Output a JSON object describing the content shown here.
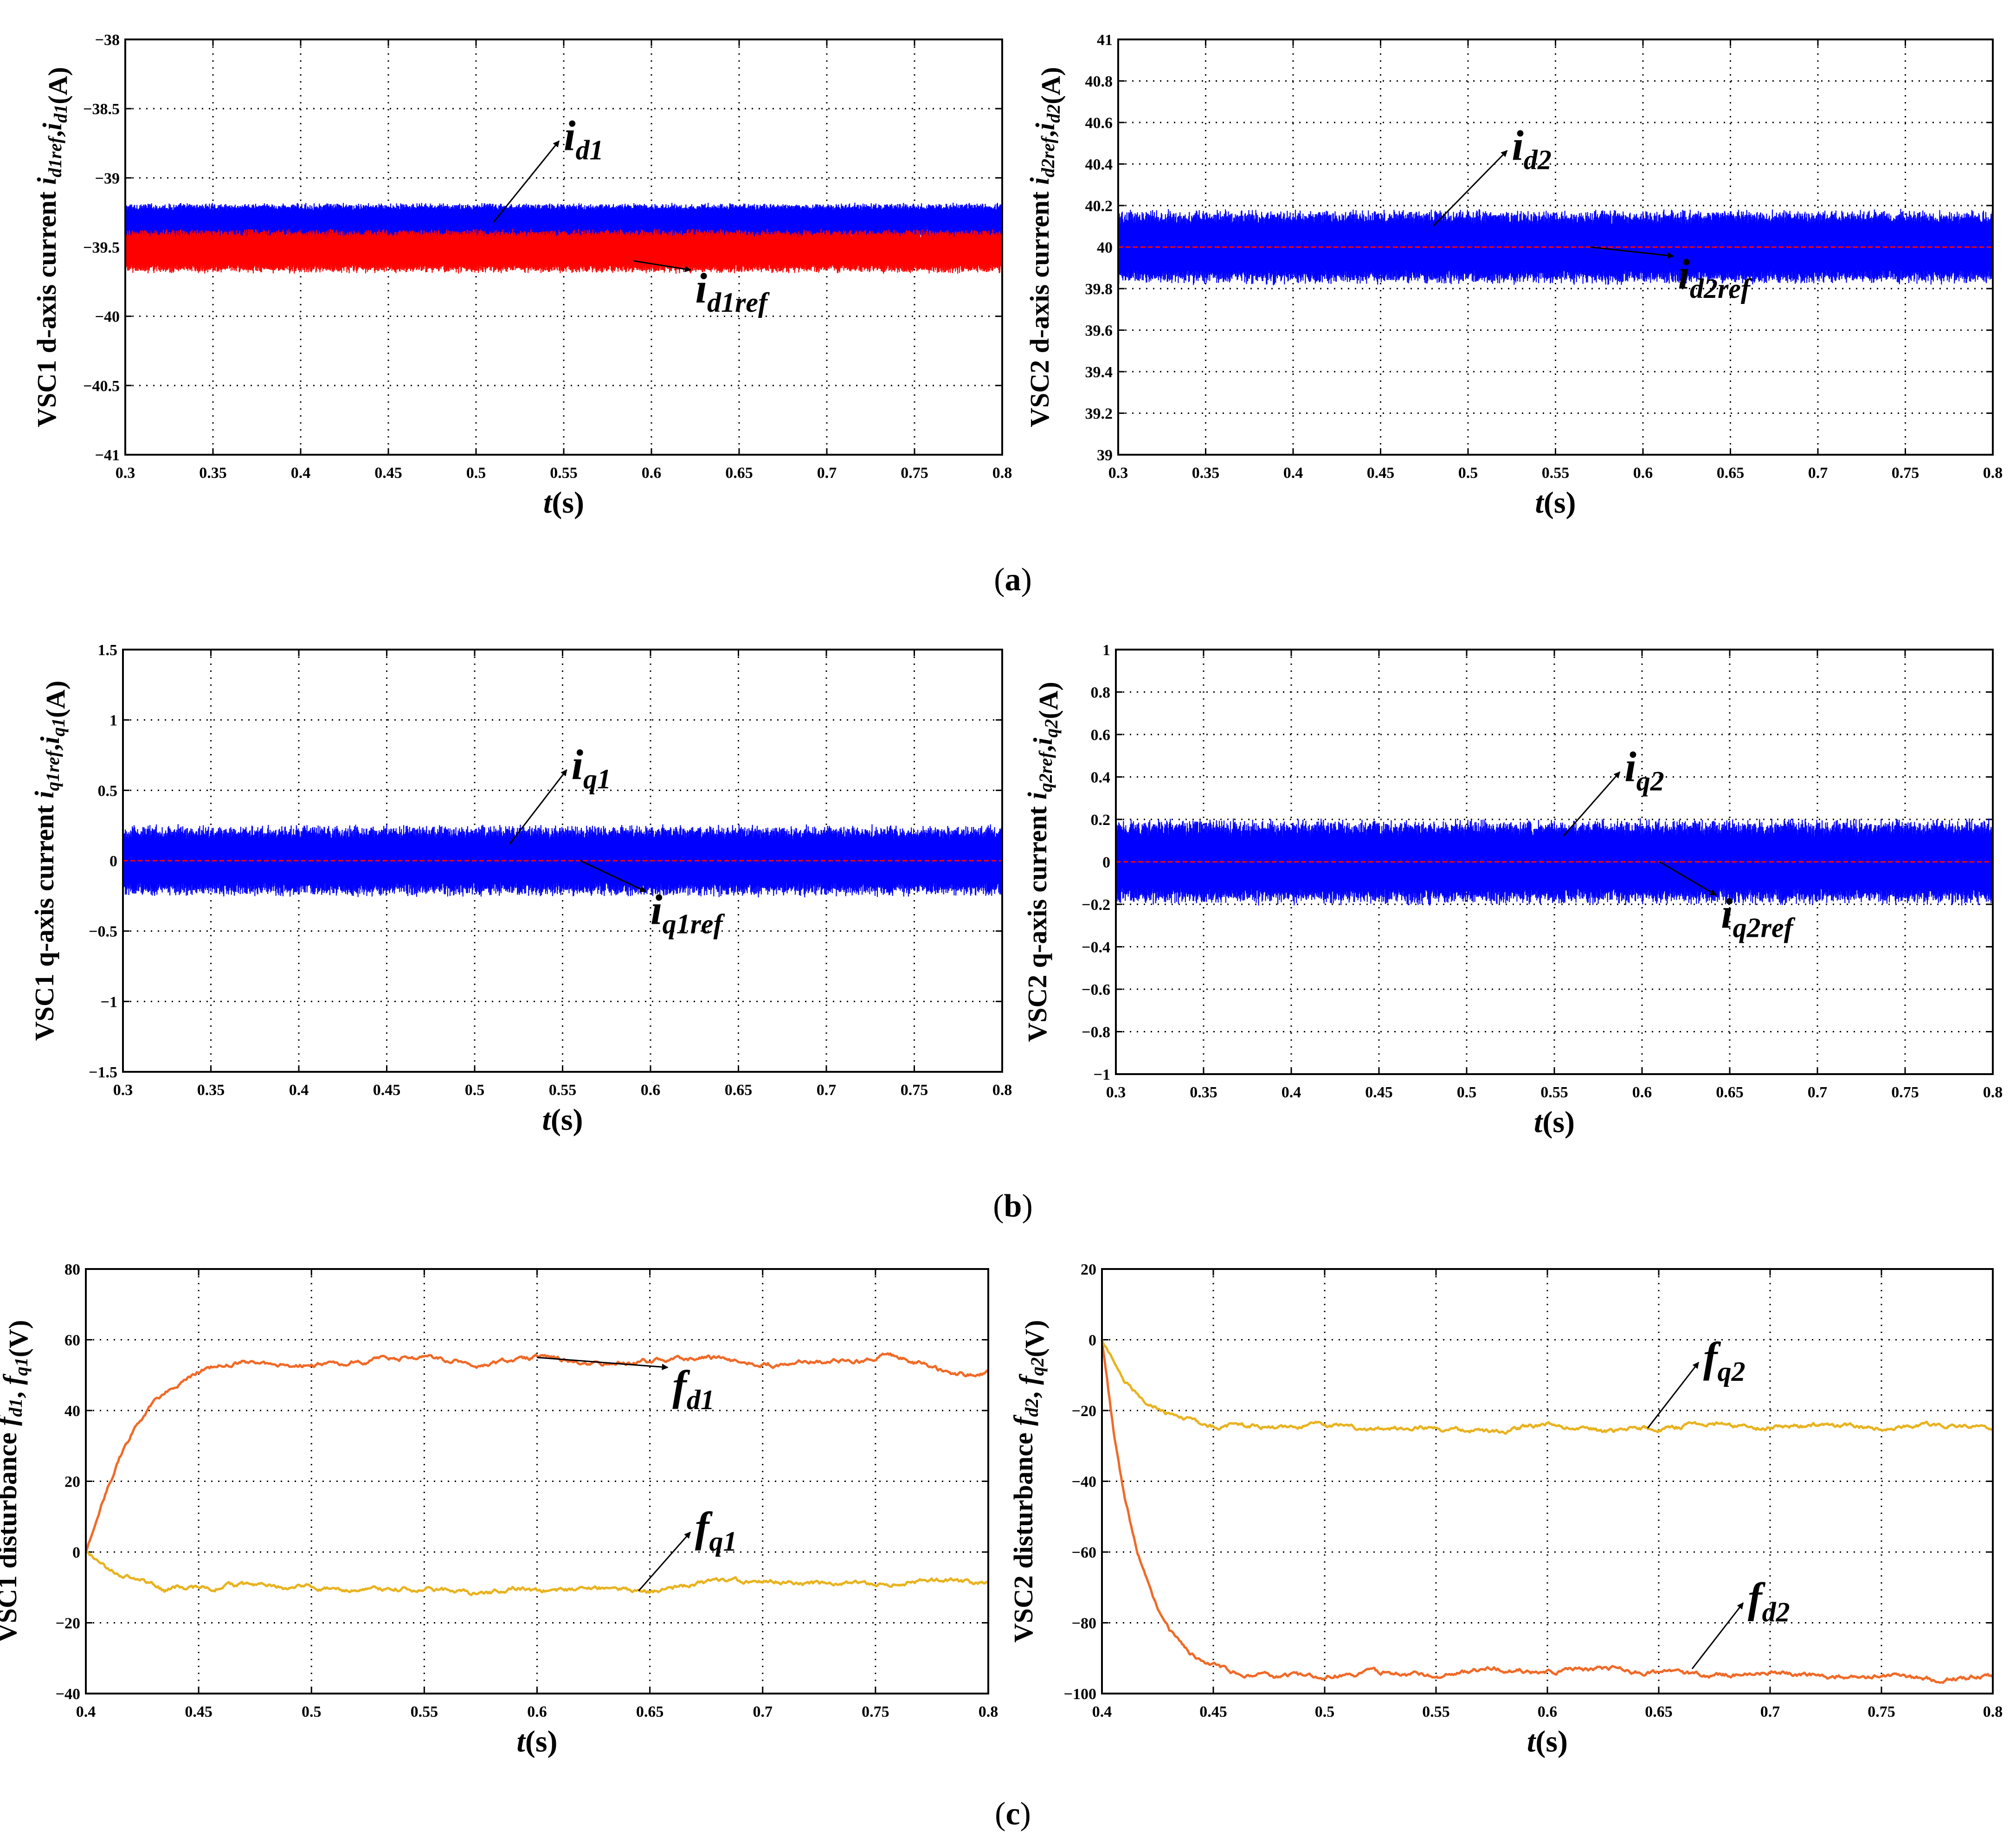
{
  "figure": {
    "caption_a": "a",
    "caption_b": "b",
    "caption_c": "c"
  },
  "chart_data": [
    {
      "id": "a1",
      "type": "line",
      "xlabel": "t(s)",
      "ylabel": "VSC1 d-axis current i_d1ref,i_d1(A)",
      "xlim": [
        0.3,
        0.8
      ],
      "ylim": [
        -41,
        -38
      ],
      "xticks": [
        "0.3",
        "0.35",
        "0.4",
        "0.45",
        "0.5",
        "0.55",
        "0.6",
        "0.65",
        "0.7",
        "0.75",
        "0.8"
      ],
      "yticks": [
        "-41",
        "-40.5",
        "-40",
        "-39.5",
        "-39",
        "-38.5",
        "-38"
      ],
      "grid": true,
      "series": [
        {
          "name": "i_d1",
          "color": "#0000ff",
          "kind": "band",
          "center": -39.32,
          "halfwidth": 0.13
        },
        {
          "name": "i_d1ref",
          "color": "#ff0000",
          "kind": "band",
          "center": -39.53,
          "halfwidth": 0.15
        }
      ],
      "annotations": [
        {
          "label_main": "i",
          "label_sub": "d1",
          "label_sub2": "",
          "point": [
            0.51,
            -39.32
          ],
          "text_at": [
            0.55,
            -38.8
          ]
        },
        {
          "label_main": "i",
          "label_sub": "d1",
          "label_sub2": "ref",
          "point": [
            0.59,
            -39.6
          ],
          "text_at": [
            0.625,
            -39.9
          ]
        }
      ]
    },
    {
      "id": "a2",
      "type": "line",
      "xlabel": "t(s)",
      "ylabel": "VSC2 d-axis current i_d2ref,i_d2(A)",
      "xlim": [
        0.3,
        0.8
      ],
      "ylim": [
        39,
        41
      ],
      "xticks": [
        "0.3",
        "0.35",
        "0.4",
        "0.45",
        "0.5",
        "0.55",
        "0.6",
        "0.65",
        "0.7",
        "0.75",
        "0.8"
      ],
      "yticks": [
        "39",
        "39.2",
        "39.4",
        "39.6",
        "39.8",
        "40",
        "40.2",
        "40.4",
        "40.6",
        "40.8",
        "41"
      ],
      "grid": true,
      "series": [
        {
          "name": "i_d2",
          "color": "#0000ff",
          "kind": "band",
          "center": 40.0,
          "halfwidth": 0.17
        },
        {
          "name": "i_d2ref",
          "color": "#ff0000",
          "kind": "dash",
          "value": 40.0
        }
      ],
      "annotations": [
        {
          "label_main": "i",
          "label_sub": "d2",
          "label_sub2": "",
          "point": [
            0.48,
            40.1
          ],
          "text_at": [
            0.525,
            40.42
          ]
        },
        {
          "label_main": "i",
          "label_sub": "d2",
          "label_sub2": "ref",
          "point": [
            0.57,
            40.0
          ],
          "text_at": [
            0.62,
            39.8
          ]
        }
      ]
    },
    {
      "id": "b1",
      "type": "line",
      "xlabel": "t(s)",
      "ylabel": "VSC1 q-axis current i_q1ref,i_q1(A)",
      "xlim": [
        0.3,
        0.8
      ],
      "ylim": [
        -1.5,
        1.5
      ],
      "xticks": [
        "0.3",
        "0.35",
        "0.4",
        "0.45",
        "0.5",
        "0.55",
        "0.6",
        "0.65",
        "0.7",
        "0.75",
        "0.8"
      ],
      "yticks": [
        "-1.5",
        "-1",
        "-0.5",
        "0",
        "0.5",
        "1",
        "1.5"
      ],
      "grid": true,
      "series": [
        {
          "name": "i_q1",
          "color": "#0000ff",
          "kind": "band",
          "center": 0.0,
          "halfwidth": 0.24
        },
        {
          "name": "i_q1ref",
          "color": "#ff0000",
          "kind": "dash",
          "value": 0.0
        }
      ],
      "annotations": [
        {
          "label_main": "i",
          "label_sub": "q1",
          "label_sub2": "",
          "point": [
            0.52,
            0.12
          ],
          "text_at": [
            0.555,
            0.58
          ]
        },
        {
          "label_main": "i",
          "label_sub": "q1",
          "label_sub2": "ref",
          "point": [
            0.56,
            0.0
          ],
          "text_at": [
            0.6,
            -0.45
          ]
        }
      ]
    },
    {
      "id": "b2",
      "type": "line",
      "xlabel": "t(s)",
      "ylabel": "VSC2 q-axis current i_q2ref,i_q2(A)",
      "xlim": [
        0.3,
        0.8
      ],
      "ylim": [
        -1,
        1
      ],
      "xticks": [
        "0.3",
        "0.35",
        "0.4",
        "0.45",
        "0.5",
        "0.55",
        "0.6",
        "0.65",
        "0.7",
        "0.75",
        "0.8"
      ],
      "yticks": [
        "-1",
        "-0.8",
        "-0.6",
        "-0.4",
        "-0.2",
        "0",
        "0.2",
        "0.4",
        "0.6",
        "0.8",
        "1"
      ],
      "grid": true,
      "series": [
        {
          "name": "i_q2",
          "color": "#0000ff",
          "kind": "band",
          "center": 0.0,
          "halfwidth": 0.19
        },
        {
          "name": "i_q2ref",
          "color": "#ff0000",
          "kind": "dash",
          "value": 0.0
        }
      ],
      "annotations": [
        {
          "label_main": "i",
          "label_sub": "q2",
          "label_sub2": "",
          "point": [
            0.555,
            0.12
          ],
          "text_at": [
            0.59,
            0.38
          ]
        },
        {
          "label_main": "i",
          "label_sub": "q2",
          "label_sub2": "ref",
          "point": [
            0.61,
            0.0
          ],
          "text_at": [
            0.645,
            -0.31
          ]
        }
      ]
    },
    {
      "id": "c1",
      "type": "line",
      "xlabel": "t(s)",
      "ylabel": "VSC1 disturbance f_d1, f_q1(V)",
      "xlim": [
        0.4,
        0.8
      ],
      "ylim": [
        -40,
        80
      ],
      "xticks": [
        "0.4",
        "0.45",
        "0.5",
        "0.55",
        "0.6",
        "0.65",
        "0.7",
        "0.75",
        "0.8"
      ],
      "yticks": [
        "-40",
        "-20",
        "0",
        "20",
        "40",
        "60",
        "80"
      ],
      "grid": true,
      "series": [
        {
          "name": "f_d1",
          "color": "#f06a28",
          "kind": "curve",
          "x": [
            0.4,
            0.405,
            0.41,
            0.415,
            0.42,
            0.425,
            0.43,
            0.435,
            0.44,
            0.445,
            0.45,
            0.46,
            0.47,
            0.48,
            0.5,
            0.52,
            0.55,
            0.575,
            0.6,
            0.625,
            0.65,
            0.675,
            0.7,
            0.725,
            0.75,
            0.755,
            0.77,
            0.78,
            0.79,
            0.8
          ],
          "y": [
            0,
            10,
            19,
            27,
            33,
            38,
            42,
            45,
            47,
            49,
            51,
            53,
            54,
            53,
            52.5,
            54,
            55,
            53,
            55,
            53,
            54,
            55,
            53,
            54,
            54,
            56,
            53,
            51,
            50,
            51
          ]
        },
        {
          "name": "f_q1",
          "color": "#e8b320",
          "kind": "curve",
          "x": [
            0.4,
            0.405,
            0.41,
            0.42,
            0.43,
            0.435,
            0.44,
            0.45,
            0.47,
            0.5,
            0.52,
            0.55,
            0.575,
            0.59,
            0.6,
            0.625,
            0.65,
            0.675,
            0.7,
            0.725,
            0.75,
            0.775,
            0.8
          ],
          "y": [
            0,
            -3,
            -5,
            -7,
            -9,
            -11,
            -10,
            -10,
            -9.5,
            -10,
            -11,
            -10,
            -12,
            -10,
            -11,
            -10,
            -11,
            -9,
            -8,
            -9,
            -9,
            -8,
            -9
          ]
        }
      ],
      "annotations": [
        {
          "label_main": "f",
          "label_sub": "d1",
          "label_sub2": "",
          "point": [
            0.6,
            55
          ],
          "text_at": [
            0.66,
            43
          ]
        },
        {
          "label_main": "f",
          "label_sub": "q1",
          "label_sub2": "",
          "point": [
            0.645,
            -11
          ],
          "text_at": [
            0.67,
            3
          ]
        }
      ]
    },
    {
      "id": "c2",
      "type": "line",
      "xlabel": "t(s)",
      "ylabel": "VSC2 disturbance f_d2, f_q2(V)",
      "xlim": [
        0.4,
        0.8
      ],
      "ylim": [
        -100,
        20
      ],
      "xticks": [
        "0.4",
        "0.45",
        "0.5",
        "0.55",
        "0.6",
        "0.65",
        "0.7",
        "0.75",
        "0.8"
      ],
      "yticks": [
        "-100",
        "-80",
        "-60",
        "-40",
        "-20",
        "0",
        "20"
      ],
      "grid": true,
      "series": [
        {
          "name": "f_d2",
          "color": "#f06a28",
          "kind": "curve",
          "x": [
            0.4,
            0.405,
            0.41,
            0.415,
            0.42,
            0.425,
            0.43,
            0.435,
            0.44,
            0.445,
            0.45,
            0.46,
            0.47,
            0.48,
            0.5,
            0.52,
            0.55,
            0.575,
            0.6,
            0.625,
            0.65,
            0.675,
            0.7,
            0.725,
            0.75,
            0.775,
            0.8
          ],
          "y": [
            0,
            -25,
            -44,
            -58,
            -68,
            -76,
            -82,
            -86,
            -89,
            -91,
            -92,
            -94,
            -95,
            -95,
            -95,
            -94,
            -95,
            -93,
            -94,
            -93,
            -94,
            -95,
            -94,
            -95,
            -95,
            -96,
            -95
          ]
        },
        {
          "name": "f_q2",
          "color": "#e8b320",
          "kind": "curve",
          "x": [
            0.4,
            0.405,
            0.41,
            0.415,
            0.42,
            0.43,
            0.44,
            0.45,
            0.46,
            0.48,
            0.5,
            0.52,
            0.55,
            0.575,
            0.6,
            0.625,
            0.65,
            0.675,
            0.7,
            0.725,
            0.75,
            0.775,
            0.8
          ],
          "y": [
            0,
            -6,
            -11,
            -15,
            -18,
            -21,
            -23,
            -25,
            -24,
            -25,
            -24,
            -25,
            -25,
            -26,
            -24,
            -26,
            -25,
            -24,
            -25,
            -24,
            -25,
            -24,
            -25
          ]
        }
      ],
      "annotations": [
        {
          "label_main": "f",
          "label_sub": "q2",
          "label_sub2": "",
          "point": [
            0.645,
            -25
          ],
          "text_at": [
            0.67,
            -9
          ]
        },
        {
          "label_main": "f",
          "label_sub": "d2",
          "label_sub2": "",
          "point": [
            0.665,
            -93
          ],
          "text_at": [
            0.69,
            -77
          ]
        }
      ]
    }
  ]
}
